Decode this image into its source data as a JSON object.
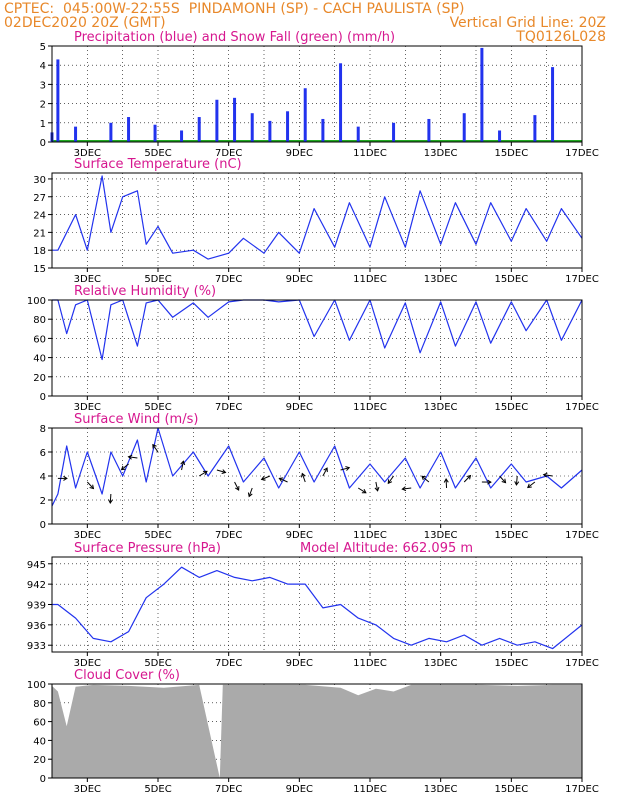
{
  "header": {
    "line1": "CPTEC:  045:00W-22:55S  PINDAMONH (SP) - CACH PAULISTA (SP)",
    "line2_left": "02DEC2020 20Z (GMT)",
    "line2_right": "Vertical Grid Line: 20Z",
    "line3_right": "TQ0126L028"
  },
  "colors": {
    "header": "#e8882a",
    "panel_title": "#d6178f",
    "series": "#2233ee",
    "snow": "#22aa22",
    "cloud": "#aaaaaa",
    "wind_arrow": "#000000"
  },
  "x_axis": {
    "labels": [
      "3DEC",
      "5DEC",
      "7DEC",
      "9DEC",
      "11DEC",
      "13DEC",
      "15DEC",
      "17DEC"
    ],
    "start": "2020-12-02T20Z",
    "end": "2020-12-17T20Z"
  },
  "chart_data": [
    {
      "type": "bar",
      "title": "Precipitation (blue) and Snow Fall (green) (mm/h)",
      "ylim": [
        0,
        5
      ],
      "yticks": [
        "0",
        "1",
        "2",
        "3",
        "4",
        "5"
      ],
      "grid": true,
      "series": [
        {
          "name": "Precipitation",
          "x_dates": [
            "02DEC 20Z",
            "03DEC 00Z",
            "03DEC 12Z",
            "04DEC 12Z",
            "05DEC 00Z",
            "05DEC 18Z",
            "06DEC 12Z",
            "07DEC 00Z",
            "07DEC 12Z",
            "08DEC 00Z",
            "08DEC 12Z",
            "09DEC 00Z",
            "09DEC 12Z",
            "10DEC 00Z",
            "10DEC 12Z",
            "11DEC 00Z",
            "11DEC 12Z",
            "12DEC 12Z",
            "13DEC 12Z",
            "14DEC 12Z",
            "15DEC 00Z",
            "15DEC 12Z",
            "16DEC 12Z",
            "17DEC 00Z"
          ],
          "values": [
            0.5,
            4.3,
            0.8,
            1.0,
            1.3,
            0.9,
            0.6,
            1.3,
            2.2,
            2.3,
            1.5,
            1.1,
            1.6,
            2.8,
            1.2,
            4.1,
            0.8,
            1.0,
            1.2,
            1.5,
            4.9,
            0.6,
            1.4,
            3.9
          ]
        },
        {
          "name": "Snow Fall",
          "values": [
            0
          ]
        }
      ]
    },
    {
      "type": "line",
      "title": "Surface Temperature (nC)",
      "ylim": [
        15,
        31
      ],
      "yticks": [
        "15",
        "18",
        "21",
        "24",
        "27",
        "30"
      ],
      "series": [
        {
          "name": "Temperature",
          "x_dates": [
            "02DEC 20Z",
            "03DEC 00Z",
            "03DEC 12Z",
            "03DEC 20Z",
            "04DEC 06Z",
            "04DEC 12Z",
            "04DEC 20Z",
            "05DEC 06Z",
            "05DEC 12Z",
            "05DEC 20Z",
            "06DEC 06Z",
            "06DEC 20Z",
            "07DEC 06Z",
            "07DEC 20Z",
            "08DEC 06Z",
            "08DEC 20Z",
            "09DEC 06Z",
            "09DEC 20Z",
            "10DEC 06Z",
            "10DEC 20Z",
            "11DEC 06Z",
            "11DEC 20Z",
            "12DEC 06Z",
            "12DEC 20Z",
            "13DEC 06Z",
            "13DEC 20Z",
            "14DEC 06Z",
            "14DEC 20Z",
            "15DEC 06Z",
            "15DEC 20Z",
            "16DEC 06Z",
            "16DEC 20Z",
            "17DEC 06Z",
            "17DEC 20Z"
          ],
          "values": [
            18,
            18,
            24,
            18,
            30.5,
            21,
            27,
            28,
            19,
            22,
            17.5,
            18,
            16.5,
            17.5,
            20,
            17.5,
            21,
            17.5,
            25,
            18.5,
            26,
            18.5,
            27,
            18.5,
            28,
            19,
            26,
            19,
            26,
            19.5,
            25,
            19.5,
            25,
            20
          ]
        }
      ]
    },
    {
      "type": "line",
      "title": "Relative Humidity (%)",
      "ylim": [
        0,
        100
      ],
      "yticks": [
        "0",
        "20",
        "40",
        "60",
        "80",
        "100"
      ],
      "series": [
        {
          "name": "Relative Humidity",
          "x_dates": [
            "02DEC 20Z",
            "03DEC 00Z",
            "03DEC 06Z",
            "03DEC 12Z",
            "03DEC 20Z",
            "04DEC 06Z",
            "04DEC 12Z",
            "04DEC 20Z",
            "05DEC 06Z",
            "05DEC 12Z",
            "05DEC 20Z",
            "06DEC 06Z",
            "06DEC 20Z",
            "07DEC 06Z",
            "07DEC 20Z",
            "08DEC 06Z",
            "08DEC 20Z",
            "09DEC 06Z",
            "09DEC 20Z",
            "10DEC 06Z",
            "10DEC 20Z",
            "11DEC 06Z",
            "11DEC 20Z",
            "12DEC 06Z",
            "12DEC 20Z",
            "13DEC 06Z",
            "13DEC 20Z",
            "14DEC 06Z",
            "14DEC 20Z",
            "15DEC 06Z",
            "15DEC 20Z",
            "16DEC 06Z",
            "16DEC 20Z",
            "17DEC 06Z",
            "17DEC 20Z"
          ],
          "values": [
            100,
            100,
            65,
            95,
            100,
            38,
            95,
            100,
            52,
            97,
            100,
            82,
            97,
            82,
            98,
            100,
            100,
            98,
            100,
            62,
            100,
            58,
            100,
            50,
            97,
            45,
            98,
            52,
            98,
            55,
            98,
            68,
            100,
            58,
            100
          ]
        }
      ]
    },
    {
      "type": "line",
      "title": "Surface Wind (m/s)",
      "ylim": [
        0,
        8
      ],
      "yticks": [
        "0",
        "2",
        "4",
        "6",
        "8"
      ],
      "series": [
        {
          "name": "Wind speed",
          "x_dates": [
            "02DEC 20Z",
            "03DEC 00Z",
            "03DEC 06Z",
            "03DEC 12Z",
            "03DEC 20Z",
            "04DEC 06Z",
            "04DEC 12Z",
            "04DEC 20Z",
            "05DEC 06Z",
            "05DEC 12Z",
            "05DEC 20Z",
            "06DEC 06Z",
            "06DEC 20Z",
            "07DEC 06Z",
            "07DEC 20Z",
            "08DEC 06Z",
            "08DEC 20Z",
            "09DEC 06Z",
            "09DEC 20Z",
            "10DEC 06Z",
            "10DEC 20Z",
            "11DEC 06Z",
            "11DEC 20Z",
            "12DEC 06Z",
            "12DEC 20Z",
            "13DEC 06Z",
            "13DEC 20Z",
            "14DEC 06Z",
            "14DEC 20Z",
            "15DEC 06Z",
            "15DEC 20Z",
            "16DEC 06Z",
            "16DEC 20Z",
            "17DEC 06Z",
            "17DEC 20Z"
          ],
          "values": [
            1.5,
            2.5,
            6.5,
            3.0,
            6.0,
            2.5,
            6.0,
            4.0,
            7.0,
            3.5,
            8.0,
            4.0,
            6.0,
            4.0,
            6.5,
            3.5,
            5.5,
            3.0,
            6.0,
            3.5,
            6.5,
            3.0,
            5.0,
            3.5,
            5.5,
            3.0,
            6.0,
            3.0,
            5.5,
            3.0,
            5.0,
            3.5,
            4.0,
            3.0,
            4.5
          ]
        }
      ],
      "wind_arrows": {
        "x_dates": [
          "03DEC 00Z",
          "03DEC 20Z",
          "04DEC 12Z",
          "05DEC 00Z",
          "05DEC 06Z",
          "05DEC 20Z",
          "06DEC 12Z",
          "07DEC 00Z",
          "07DEC 12Z",
          "08DEC 00Z",
          "08DEC 12Z",
          "09DEC 00Z",
          "09DEC 12Z",
          "10DEC 00Z",
          "10DEC 12Z",
          "11DEC 00Z",
          "11DEC 12Z",
          "12DEC 00Z",
          "12DEC 12Z",
          "13DEC 00Z",
          "13DEC 12Z",
          "14DEC 00Z",
          "14DEC 12Z",
          "15DEC 00Z",
          "15DEC 12Z",
          "16DEC 00Z",
          "16DEC 12Z",
          "17DEC 00Z"
        ],
        "speeds": [
          3.8,
          3.5,
          2.5,
          5.0,
          5.5,
          6.0,
          4.5,
          4.0,
          4.5,
          3.5,
          3.0,
          4.0,
          3.5,
          3.5,
          4.0,
          4.5,
          3.0,
          3.5,
          4.0,
          3.0,
          3.5,
          3.0,
          3.5,
          3.5,
          4.0,
          4.0,
          3.5,
          4.0
        ]
      }
    },
    {
      "type": "line",
      "title": "Surface Pressure (hPa)",
      "annotation": "Model Altitude: 662.095 m",
      "ylim": [
        932,
        946
      ],
      "yticks": [
        "933",
        "936",
        "939",
        "942",
        "945"
      ],
      "series": [
        {
          "name": "Pressure",
          "x_dates": [
            "02DEC 20Z",
            "03DEC 00Z",
            "03DEC 12Z",
            "04DEC 00Z",
            "04DEC 12Z",
            "05DEC 00Z",
            "05DEC 12Z",
            "06DEC 00Z",
            "06DEC 12Z",
            "07DEC 00Z",
            "07DEC 12Z",
            "08DEC 00Z",
            "08DEC 12Z",
            "09DEC 00Z",
            "09DEC 12Z",
            "10DEC 00Z",
            "10DEC 12Z",
            "11DEC 00Z",
            "11DEC 12Z",
            "12DEC 00Z",
            "12DEC 12Z",
            "13DEC 00Z",
            "13DEC 12Z",
            "14DEC 00Z",
            "14DEC 12Z",
            "15DEC 00Z",
            "15DEC 12Z",
            "16DEC 00Z",
            "16DEC 12Z",
            "17DEC 00Z",
            "17DEC 20Z"
          ],
          "values": [
            939,
            939,
            937,
            934,
            933.5,
            935,
            940,
            942,
            944.5,
            943,
            944,
            943,
            942.5,
            943,
            942,
            942,
            938.5,
            939,
            937,
            936,
            934,
            933,
            934,
            933.5,
            934.5,
            933,
            934,
            933,
            933.5,
            932.5,
            936
          ]
        }
      ]
    },
    {
      "type": "area",
      "title": "Cloud Cover (%)",
      "ylim": [
        0,
        100
      ],
      "yticks": [
        "0",
        "20",
        "40",
        "60",
        "80",
        "100"
      ],
      "series": [
        {
          "name": "Cloud Cover",
          "x_dates": [
            "02DEC 20Z",
            "03DEC 00Z",
            "03DEC 06Z",
            "03DEC 12Z",
            "04DEC 00Z",
            "05DEC 00Z",
            "06DEC 00Z",
            "07DEC 00Z",
            "07DEC 14Z",
            "07DEC 16Z",
            "08DEC 00Z",
            "09DEC 00Z",
            "10DEC 00Z",
            "11DEC 00Z",
            "11DEC 12Z",
            "12DEC 00Z",
            "12DEC 12Z",
            "13DEC 00Z",
            "14DEC 00Z",
            "15DEC 00Z",
            "16DEC 00Z",
            "17DEC 00Z",
            "17DEC 20Z"
          ],
          "values": [
            98,
            92,
            55,
            97,
            99,
            98,
            96,
            99,
            0,
            99,
            99,
            99,
            99,
            96,
            88,
            95,
            92,
            99,
            99,
            99,
            98,
            99,
            99
          ]
        }
      ]
    }
  ]
}
